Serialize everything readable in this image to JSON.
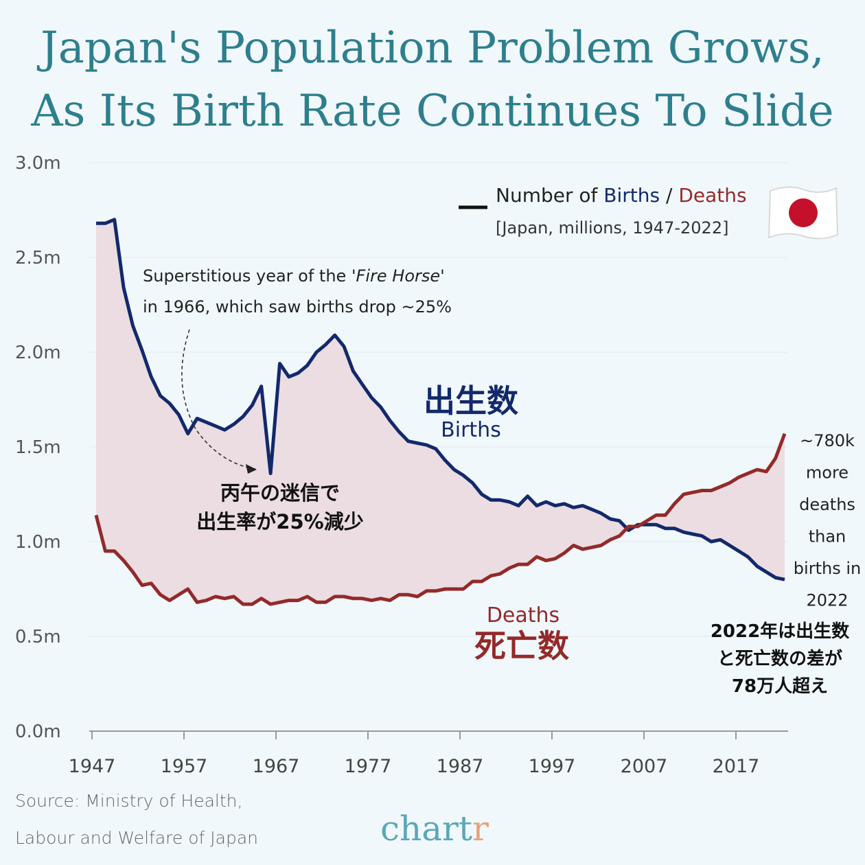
{
  "title_line1": "Japan's Population Problem Grows,",
  "title_line2": "As Its Birth Rate Continues To Slide",
  "legend": {
    "part1": "Number of ",
    "births": "Births",
    "sep": " / ",
    "deaths": "Deaths",
    "subtitle": "[Japan, millions, 1947-2022]",
    "flag_icon": "japan-flag-icon"
  },
  "annotations": {
    "fire_horse_line1_a": "Superstitious year of the '",
    "fire_horse_line1_em": "Fire Horse",
    "fire_horse_line1_b": "'",
    "fire_horse_line2": "in 1966, which saw births drop ~25%",
    "fire_horse_jp1": "丙午の迷信で",
    "fire_horse_jp2": "出生率が25%減少",
    "births_jp": "出生数",
    "births_en": "Births",
    "deaths_en": "Deaths",
    "deaths_jp": "死亡数",
    "gap_lines": [
      "~780k",
      "more",
      "deaths",
      "than",
      "births in",
      "2022"
    ],
    "gap_jp": [
      "2022年は出生数",
      "と死亡数の差が",
      "78万人超え"
    ]
  },
  "source_line1": "Source: Ministry of Health,",
  "source_line2": "Labour and Welfare of Japan",
  "brand": "chart",
  "brand_r": "r",
  "colors": {
    "births": "#13296b",
    "deaths": "#932a2a",
    "births_fill": "#dde3f0",
    "deaths_fill": "#ecdbe0",
    "title": "#2e7f8d"
  },
  "chart_data": {
    "type": "line",
    "unit": "millions",
    "x_start": 1947,
    "x_end": 2022,
    "ylim": [
      0,
      3.0
    ],
    "y_ticks": [
      0.0,
      0.5,
      1.0,
      1.5,
      2.0,
      2.5,
      3.0
    ],
    "y_tick_labels": [
      "0.0m",
      "0.5m",
      "1.0m",
      "1.5m",
      "2.0m",
      "2.5m",
      "3.0m"
    ],
    "x_ticks": [
      1947,
      1957,
      1967,
      1977,
      1987,
      1997,
      2007,
      2017
    ],
    "x_tick_labels": [
      "1947",
      "1957",
      "1967",
      "1977",
      "1987",
      "1997",
      "2007",
      "2017"
    ],
    "series": [
      {
        "name": "Births",
        "x": [
          1947,
          1948,
          1949,
          1950,
          1951,
          1952,
          1953,
          1954,
          1955,
          1956,
          1957,
          1958,
          1959,
          1960,
          1961,
          1962,
          1963,
          1964,
          1965,
          1966,
          1967,
          1968,
          1969,
          1970,
          1971,
          1972,
          1973,
          1974,
          1975,
          1976,
          1977,
          1978,
          1979,
          1980,
          1981,
          1982,
          1983,
          1984,
          1985,
          1986,
          1987,
          1988,
          1989,
          1990,
          1991,
          1992,
          1993,
          1994,
          1995,
          1996,
          1997,
          1998,
          1999,
          2000,
          2001,
          2002,
          2003,
          2004,
          2005,
          2006,
          2007,
          2008,
          2009,
          2010,
          2011,
          2012,
          2013,
          2014,
          2015,
          2016,
          2017,
          2018,
          2019,
          2020,
          2021,
          2022
        ],
        "values": [
          2.68,
          2.68,
          2.7,
          2.34,
          2.14,
          2.01,
          1.87,
          1.77,
          1.73,
          1.67,
          1.57,
          1.65,
          1.63,
          1.61,
          1.59,
          1.62,
          1.66,
          1.72,
          1.82,
          1.36,
          1.94,
          1.87,
          1.89,
          1.93,
          2.0,
          2.04,
          2.09,
          2.03,
          1.9,
          1.83,
          1.76,
          1.71,
          1.64,
          1.58,
          1.53,
          1.52,
          1.51,
          1.49,
          1.43,
          1.38,
          1.35,
          1.31,
          1.25,
          1.22,
          1.22,
          1.21,
          1.19,
          1.24,
          1.19,
          1.21,
          1.19,
          1.2,
          1.18,
          1.19,
          1.17,
          1.15,
          1.12,
          1.11,
          1.06,
          1.09,
          1.09,
          1.09,
          1.07,
          1.07,
          1.05,
          1.04,
          1.03,
          1.0,
          1.01,
          0.98,
          0.95,
          0.92,
          0.87,
          0.84,
          0.81,
          0.8
        ]
      },
      {
        "name": "Deaths",
        "x": [
          1947,
          1948,
          1949,
          1950,
          1951,
          1952,
          1953,
          1954,
          1955,
          1956,
          1957,
          1958,
          1959,
          1960,
          1961,
          1962,
          1963,
          1964,
          1965,
          1966,
          1967,
          1968,
          1969,
          1970,
          1971,
          1972,
          1973,
          1974,
          1975,
          1976,
          1977,
          1978,
          1979,
          1980,
          1981,
          1982,
          1983,
          1984,
          1985,
          1986,
          1987,
          1988,
          1989,
          1990,
          1991,
          1992,
          1993,
          1994,
          1995,
          1996,
          1997,
          1998,
          1999,
          2000,
          2001,
          2002,
          2003,
          2004,
          2005,
          2006,
          2007,
          2008,
          2009,
          2010,
          2011,
          2012,
          2013,
          2014,
          2015,
          2016,
          2017,
          2018,
          2019,
          2020,
          2021,
          2022
        ],
        "values": [
          1.14,
          0.95,
          0.95,
          0.9,
          0.84,
          0.77,
          0.78,
          0.72,
          0.69,
          0.72,
          0.75,
          0.68,
          0.69,
          0.71,
          0.7,
          0.71,
          0.67,
          0.67,
          0.7,
          0.67,
          0.68,
          0.69,
          0.69,
          0.71,
          0.68,
          0.68,
          0.71,
          0.71,
          0.7,
          0.7,
          0.69,
          0.7,
          0.69,
          0.72,
          0.72,
          0.71,
          0.74,
          0.74,
          0.75,
          0.75,
          0.75,
          0.79,
          0.79,
          0.82,
          0.83,
          0.86,
          0.88,
          0.88,
          0.92,
          0.9,
          0.91,
          0.94,
          0.98,
          0.96,
          0.97,
          0.98,
          1.01,
          1.03,
          1.08,
          1.08,
          1.11,
          1.14,
          1.14,
          1.2,
          1.25,
          1.26,
          1.27,
          1.27,
          1.29,
          1.31,
          1.34,
          1.36,
          1.38,
          1.37,
          1.44,
          1.57
        ]
      }
    ]
  }
}
